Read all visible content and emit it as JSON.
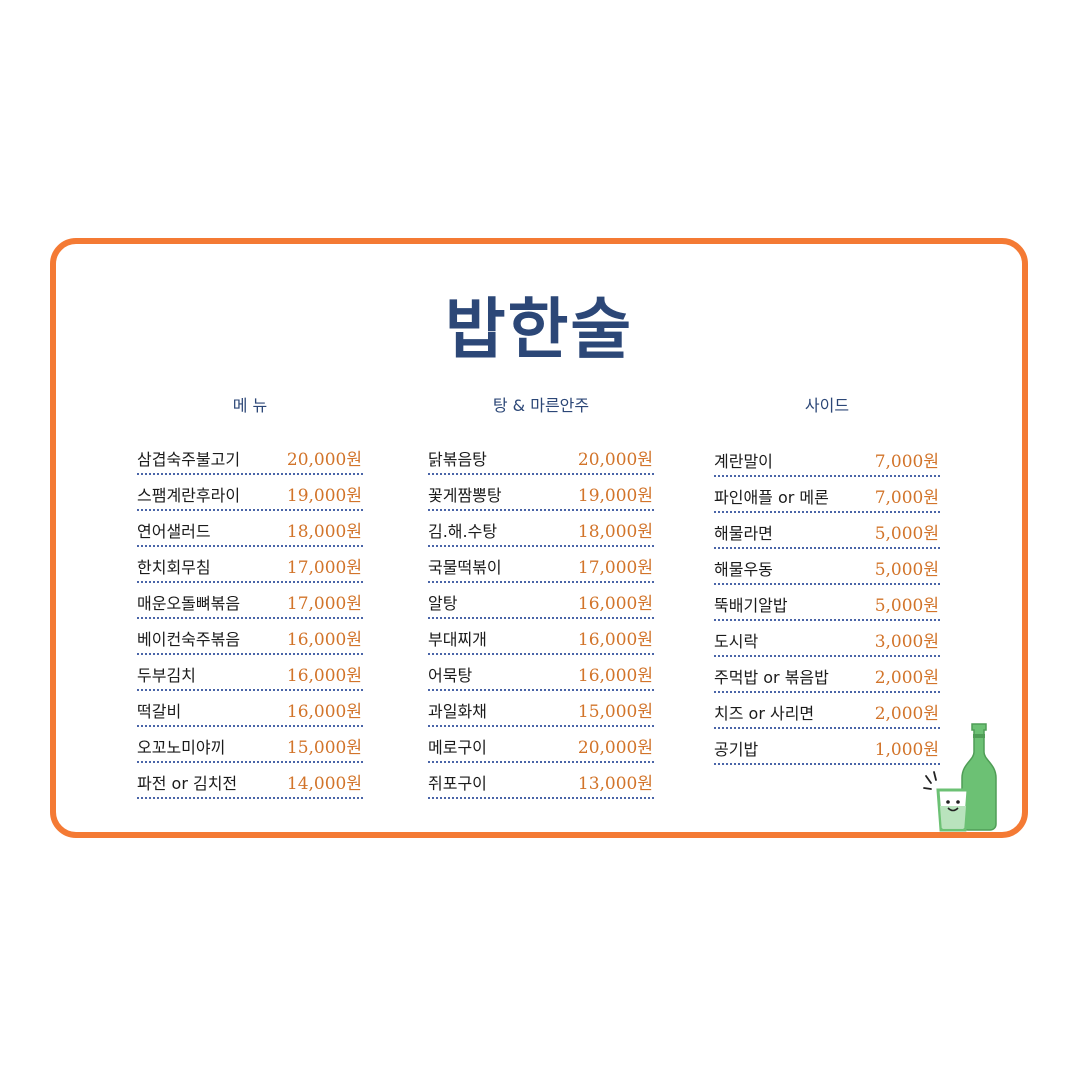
{
  "logo": "밥한술",
  "accent": "#f47a34",
  "title_color": "#2c4777",
  "price_color": "#d2742a",
  "sections": [
    {
      "title": "메 뉴",
      "items": [
        {
          "name": "삼겹숙주불고기",
          "price": "20,000원"
        },
        {
          "name": "스팸계란후라이",
          "price": "19,000원"
        },
        {
          "name": "연어샐러드",
          "price": "18,000원"
        },
        {
          "name": "한치회무침",
          "price": "17,000원"
        },
        {
          "name": "매운오돌뼈볶음",
          "price": "17,000원"
        },
        {
          "name": "베이컨숙주볶음",
          "price": "16,000원"
        },
        {
          "name": "두부김치",
          "price": "16,000원"
        },
        {
          "name": "떡갈비",
          "price": "16,000원"
        },
        {
          "name": "오꼬노미야끼",
          "price": "15,000원"
        },
        {
          "name": "파전 or 김치전",
          "price": "14,000원"
        }
      ]
    },
    {
      "title": "탕 & 마른안주",
      "items": [
        {
          "name": "닭볶음탕",
          "price": "20,000원"
        },
        {
          "name": "꽃게짬뽕탕",
          "price": "19,000원"
        },
        {
          "name": "김.해.수탕",
          "price": "18,000원"
        },
        {
          "name": "국물떡볶이",
          "price": "17,000원"
        },
        {
          "name": "알탕",
          "price": "16,000원"
        },
        {
          "name": "부대찌개",
          "price": "16,000원"
        },
        {
          "name": "어묵탕",
          "price": "16,000원"
        },
        {
          "name": "과일화채",
          "price": "15,000원"
        },
        {
          "name": "메로구이",
          "price": "20,000원"
        },
        {
          "name": "쥐포구이",
          "price": "13,000원"
        }
      ]
    },
    {
      "title": "사이드",
      "items": [
        {
          "name": "계란말이",
          "price": "7,000원"
        },
        {
          "name": "파인애플 or 메론",
          "price": "7,000원"
        },
        {
          "name": "해물라면",
          "price": "5,000원"
        },
        {
          "name": "해물우동",
          "price": "5,000원"
        },
        {
          "name": "뚝배기알밥",
          "price": "5,000원"
        },
        {
          "name": "도시락",
          "price": "3,000원"
        },
        {
          "name": "주먹밥 or 볶음밥",
          "price": "2,000원"
        },
        {
          "name": "치즈 or 사리면",
          "price": "2,000원"
        },
        {
          "name": "공기밥",
          "price": "1,000원"
        }
      ]
    }
  ],
  "illustration": "soju-bottle-and-glass-icon"
}
